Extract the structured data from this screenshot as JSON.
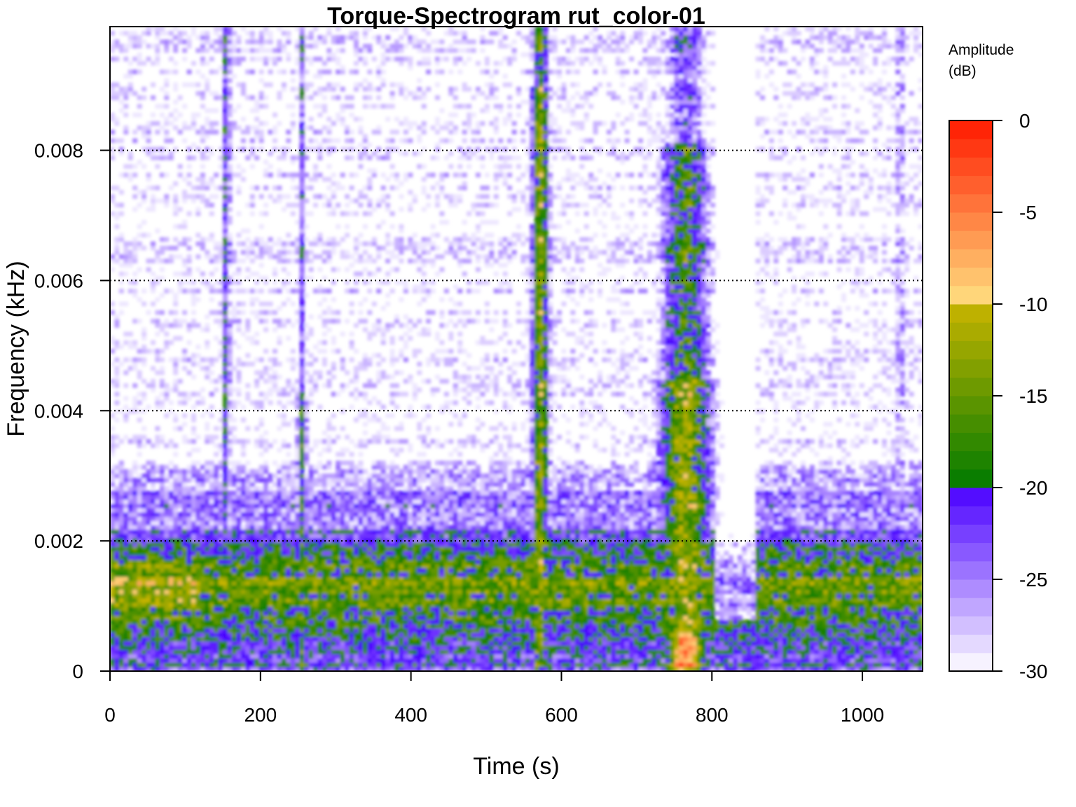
{
  "chart_data": {
    "type": "heatmap",
    "title": "Torque-Spectrogram rut_color-01",
    "xlabel": "Time (s)",
    "ylabel": "Frequency (kHz)",
    "xlim": [
      0,
      1080
    ],
    "ylim": [
      0,
      0.0099
    ],
    "x_ticks": [
      0,
      200,
      400,
      600,
      800,
      1000
    ],
    "x_tick_labels": [
      "0",
      "200",
      "400",
      "600",
      "800",
      "1000"
    ],
    "y_ticks": [
      0,
      0.002,
      0.004,
      0.006,
      0.008
    ],
    "y_tick_labels": [
      "0",
      "0.002",
      "0.004",
      "0.006",
      "0.008"
    ],
    "grid": {
      "horizontal_dotted_at": [
        0.002,
        0.004,
        0.006,
        0.008
      ]
    },
    "colorbar": {
      "title_line1": "Amplitude",
      "title_line2": "(dB)",
      "range": [
        -30,
        0
      ],
      "ticks": [
        0,
        -5,
        -10,
        -15,
        -20,
        -25,
        -30
      ],
      "tick_labels": [
        "0",
        "-5",
        "-10",
        "-15",
        "-20",
        "-25",
        "-30"
      ],
      "levels": [
        {
          "from": -30,
          "to": -20,
          "color_low": "#ffffff",
          "color_high": "#4a00ff"
        },
        {
          "from": -20,
          "to": -10,
          "color_low": "#007a00",
          "color_high": "#c8b400"
        },
        {
          "from": -10,
          "to": 0,
          "color_low": "#ffe080",
          "color_high": "#ff1a00"
        }
      ]
    },
    "features": [
      {
        "desc": "narrow vertical band",
        "t": 155,
        "f_range": [
          0,
          0.0099
        ],
        "peak_db": -20
      },
      {
        "desc": "weak vertical band",
        "t": 255,
        "f_range": [
          0,
          0.0099
        ],
        "peak_db": -17
      },
      {
        "desc": "strong vertical band",
        "t": 570,
        "f_range": [
          0,
          0.0099
        ],
        "peak_db": -15
      },
      {
        "desc": "broad strong band",
        "t_range": [
          720,
          810
        ],
        "f_range": [
          0,
          0.0099
        ],
        "peak_db": -5
      },
      {
        "desc": "low-frequency broadband energy",
        "t_range": [
          0,
          1080
        ],
        "f_range": [
          0,
          0.002
        ],
        "peak_db": -10
      }
    ]
  }
}
